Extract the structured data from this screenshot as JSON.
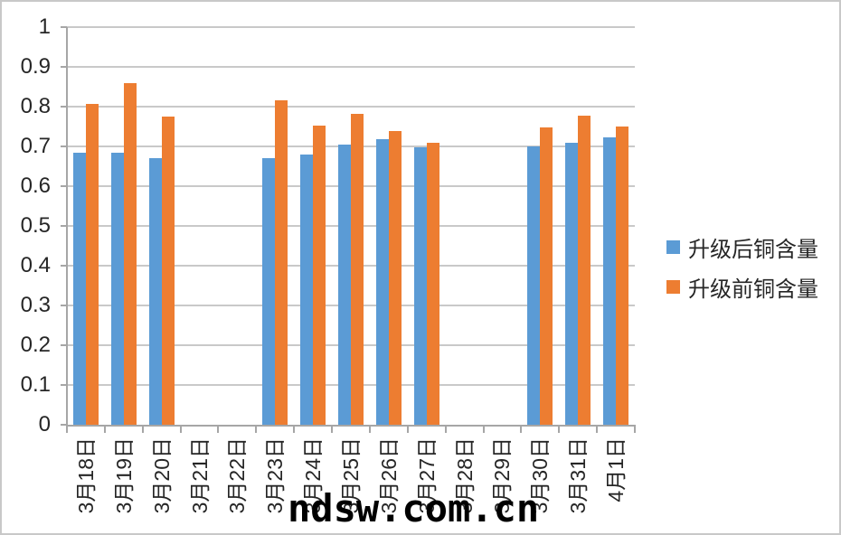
{
  "watermark": "ndsw.com.cn",
  "colors": {
    "series_after": "#5b9bd5",
    "series_before": "#ed7d31",
    "gridline": "#c9c9c9",
    "axis": "#a6a6a6",
    "text": "#262626"
  },
  "chart_data": {
    "type": "bar",
    "title": "",
    "xlabel": "",
    "ylabel": "",
    "categories": [
      "3月18日",
      "3月19日",
      "3月20日",
      "3月21日",
      "3月22日",
      "3月23日",
      "3月24日",
      "3月25日",
      "3月26日",
      "3月27日",
      "3月28日",
      "3月29日",
      "3月30日",
      "3月31日",
      "4月1日"
    ],
    "series": [
      {
        "name": "升级后铜含量",
        "color": "#5b9bd5",
        "values": [
          0.685,
          0.684,
          0.671,
          null,
          null,
          0.67,
          0.68,
          0.704,
          0.718,
          0.697,
          null,
          null,
          0.699,
          0.709,
          0.723
        ]
      },
      {
        "name": "升级前铜含量",
        "color": "#ed7d31",
        "values": [
          0.806,
          0.859,
          0.776,
          null,
          null,
          0.817,
          0.753,
          0.781,
          0.738,
          0.708,
          null,
          null,
          0.748,
          0.777,
          0.751
        ]
      }
    ],
    "ylim": [
      0,
      1
    ],
    "y_ticks": [
      "0",
      "0.1",
      "0.2",
      "0.3",
      "0.4",
      "0.5",
      "0.6",
      "0.7",
      "0.8",
      "0.9",
      "1"
    ],
    "grid": true,
    "legend_position": "right",
    "x_label_orientation": "vertical"
  }
}
